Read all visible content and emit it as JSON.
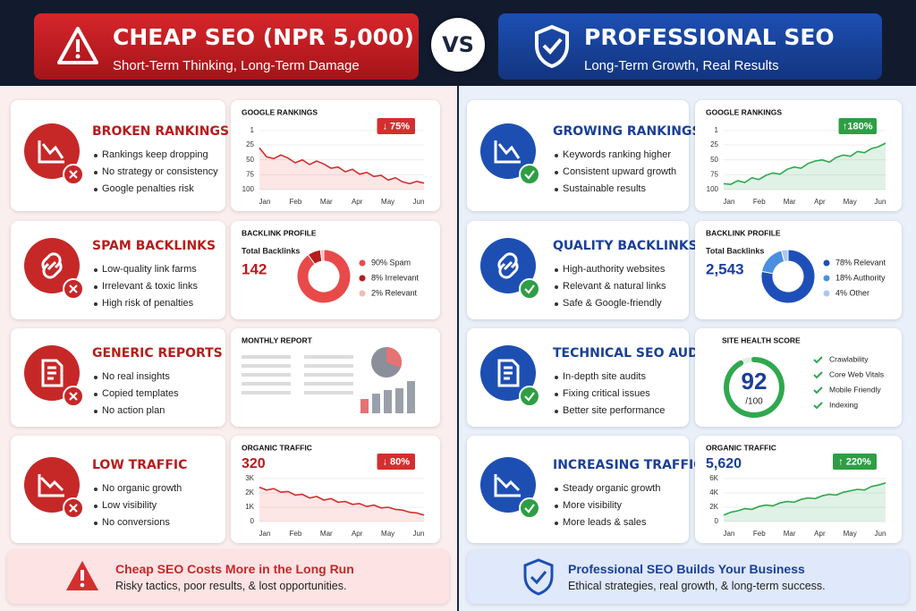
{
  "left": {
    "title": "CHEAP SEO (NPR 5,000)",
    "subtitle": "Short-Term Thinking, Long-Term Damage",
    "rows": [
      {
        "heading": "BROKEN RANKINGS",
        "bullets": [
          "Rankings keep dropping",
          "No strategy or consistency",
          "Google penalties risk"
        ],
        "panel": {
          "type": "line",
          "title": "GOOGLE RANKINGS",
          "badge": "↓ 75%",
          "categories": [
            "Jan",
            "Feb",
            "Mar",
            "Apr",
            "May",
            "Jun"
          ],
          "ylim": [
            100,
            1
          ],
          "yticks": [
            1,
            25,
            50,
            75,
            100
          ],
          "values": [
            30,
            45,
            48,
            42,
            47,
            55,
            50,
            58,
            52,
            57,
            64,
            62,
            70,
            66,
            74,
            71,
            78,
            76,
            84,
            80,
            87,
            90,
            86,
            89
          ]
        }
      },
      {
        "heading": "SPAM BACKLINKS",
        "bullets": [
          "Low-quality link farms",
          "Irrelevant & toxic links",
          "High risk of penalties"
        ],
        "panel": {
          "type": "donut",
          "title": "BACKLINK PROFILE",
          "label": "Total Backlinks",
          "total": "142",
          "values": [
            90,
            8,
            2
          ],
          "labels": [
            "90% Spam",
            "8% Irrelevant",
            "2% Relevant"
          ],
          "colors": [
            "#e84a4a",
            "#b71c1c",
            "#f6b8b8"
          ]
        }
      },
      {
        "heading": "GENERIC REPORTS",
        "bullets": [
          "No real insights",
          "Copied templates",
          "No action plan"
        ],
        "panel": {
          "type": "report",
          "title": "MONTHLY REPORT"
        }
      },
      {
        "heading": "LOW TRAFFIC",
        "bullets": [
          "No organic growth",
          "Low visibility",
          "No conversions"
        ],
        "panel": {
          "type": "line",
          "title": "ORGANIC TRAFFIC",
          "total": "320",
          "badge": "↓ 80%",
          "categories": [
            "Jan",
            "Feb",
            "Mar",
            "Apr",
            "May",
            "Jun"
          ],
          "ylim": [
            0,
            3000
          ],
          "yticks": [
            0,
            {
              "value": 1000,
              "label": "1K"
            },
            {
              "value": 2000,
              "label": "2K"
            },
            {
              "value": 3000,
              "label": "3K"
            }
          ],
          "values": [
            2400,
            2200,
            2300,
            2050,
            2100,
            1850,
            1900,
            1650,
            1750,
            1500,
            1600,
            1350,
            1400,
            1200,
            1250,
            1050,
            1150,
            950,
            1000,
            850,
            800,
            650,
            600,
            450
          ]
        }
      }
    ],
    "footer": {
      "title": "Cheap SEO Costs More in the Long Run",
      "text": "Risky tactics, poor results, & lost opportunities."
    }
  },
  "vs": "VS",
  "right": {
    "title": "PROFESSIONAL SEO",
    "subtitle": "Long-Term Growth, Real Results",
    "rows": [
      {
        "heading": "GROWING RANKINGS",
        "bullets": [
          "Keywords ranking higher",
          "Consistent upward growth",
          "Sustainable results"
        ],
        "panel": {
          "type": "line",
          "title": "GOOGLE RANKINGS",
          "badge": "↑180%",
          "categories": [
            "Jan",
            "Feb",
            "Mar",
            "Apr",
            "May",
            "Jun"
          ],
          "ylim": [
            100,
            1
          ],
          "yticks": [
            1,
            25,
            50,
            75,
            100
          ],
          "values": [
            90,
            91,
            85,
            88,
            80,
            83,
            76,
            72,
            74,
            66,
            62,
            64,
            56,
            52,
            50,
            54,
            46,
            42,
            44,
            36,
            38,
            31,
            28,
            22
          ]
        }
      },
      {
        "heading": "QUALITY BACKLINKS",
        "bullets": [
          "High-authority websites",
          "Relevant & natural links",
          "Safe & Google-friendly"
        ],
        "panel": {
          "type": "donut",
          "title": "BACKLINK PROFILE",
          "label": "Total Backlinks",
          "total": "2,543",
          "values": [
            78,
            18,
            4
          ],
          "labels": [
            "78% Relevant",
            "18% Authority",
            "4% Other"
          ],
          "colors": [
            "#1e4fb8",
            "#4a8fe0",
            "#a9c8f0"
          ]
        }
      },
      {
        "heading": "TECHNICAL SEO AUDITS",
        "bullets": [
          "In-depth site audits",
          "Fixing critical issues",
          "Better site performance"
        ],
        "panel": {
          "type": "gauge",
          "title": "SITE HEALTH SCORE",
          "score": 92,
          "max": 100,
          "max_label": "/100",
          "checks": [
            "Crawlability",
            "Core Web Vitals",
            "Mobile Friendly",
            "Indexing"
          ]
        }
      },
      {
        "heading": "INCREASING TRAFFIC",
        "bullets": [
          "Steady organic growth",
          "More visibility",
          "More leads & sales"
        ],
        "panel": {
          "type": "line",
          "title": "ORGANIC TRAFFIC",
          "total": "5,620",
          "badge": "↑ 220%",
          "categories": [
            "Jan",
            "Feb",
            "Mar",
            "Apr",
            "May",
            "Jun"
          ],
          "ylim": [
            0,
            6000
          ],
          "yticks": [
            0,
            {
              "value": 2000,
              "label": "2K"
            },
            {
              "value": 4000,
              "label": "4K"
            },
            {
              "value": 6000,
              "label": "6K"
            }
          ],
          "values": [
            900,
            1300,
            1500,
            1800,
            1700,
            2100,
            2300,
            2200,
            2600,
            2800,
            2700,
            3100,
            3300,
            3200,
            3600,
            3800,
            3700,
            4100,
            4300,
            4500,
            4400,
            4900,
            5100,
            5400
          ]
        }
      }
    ],
    "footer": {
      "title": "Professional SEO Builds Your Business",
      "text": "Ethical strategies, real growth, & long-term success."
    }
  }
}
